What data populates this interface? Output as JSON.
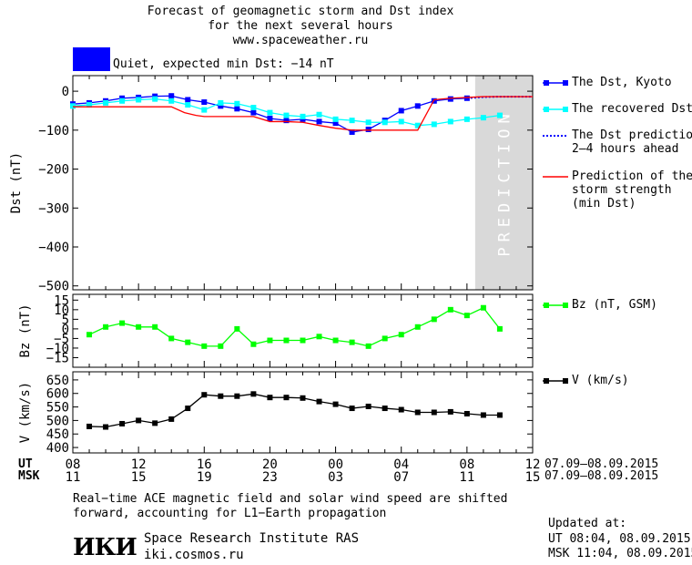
{
  "header": {
    "title_line1": "Forecast of geomagnetic storm and Dst index",
    "title_line2": "for the next several hours",
    "url": "www.spaceweather.ru",
    "status_color": "#0000ff",
    "status_text": "Quiet, expected min Dst: −14 nT"
  },
  "time_axis": {
    "ut_label": "UT",
    "msk_label": "MSK",
    "ut_ticks": [
      "08",
      "12",
      "16",
      "20",
      "00",
      "04",
      "08",
      "12"
    ],
    "msk_ticks": [
      "11",
      "15",
      "19",
      "23",
      "03",
      "07",
      "11",
      "15"
    ],
    "ut_range": "07.09–08.09.2015",
    "msk_range": "07.09–08.09.2015"
  },
  "prediction_label": "PREDICTION",
  "legends": {
    "dst_kyoto": "The Dst, Kyoto",
    "dst_recovered": "The recovered Dst",
    "dst_prediction": [
      "The Dst prediction",
      "2–4 hours ahead"
    ],
    "storm_strength": [
      "Prediction of the",
      "storm strength",
      "(min Dst)"
    ],
    "bz": "Bz (nT, GSM)",
    "v": "V (km/s)"
  },
  "footer": {
    "note_line1": "Real−time ACE magnetic field and solar wind speed are shifted",
    "note_line2": "forward, accounting for L1−Earth propagation",
    "logo_text": "ИКИ",
    "institute": "Space Research Institute RAS",
    "site": "iki.cosmos.ru",
    "updated_label": "Updated at:",
    "updated_ut": "UT   08:04, 08.09.2015",
    "updated_msk": "MSK 11:04, 08.09.2015"
  },
  "chart_data": [
    {
      "type": "line",
      "ylabel": "Dst (nT)",
      "ylim": [
        -510,
        40
      ],
      "yticks": [
        0,
        -100,
        -200,
        -300,
        -400,
        -500
      ],
      "xlim": [
        0,
        28
      ],
      "prediction_region": [
        24.5,
        28
      ],
      "series": [
        {
          "name": "The Dst, Kyoto",
          "color": "#0000ff",
          "style": "solid-square",
          "x": [
            0,
            1,
            2,
            3,
            4,
            5,
            6,
            7,
            8,
            9,
            10,
            11,
            12,
            13,
            14,
            15,
            16,
            17,
            18,
            19,
            20,
            21,
            22,
            23,
            24
          ],
          "y": [
            -33,
            -30,
            -25,
            -18,
            -16,
            -13,
            -12,
            -22,
            -28,
            -38,
            -45,
            -55,
            -70,
            -75,
            -72,
            -78,
            -82,
            -105,
            -98,
            -75,
            -50,
            -38,
            -25,
            -20,
            -18
          ]
        },
        {
          "name": "The recovered Dst",
          "color": "#00ffff",
          "style": "solid-square",
          "x": [
            0,
            1,
            2,
            3,
            4,
            5,
            6,
            7,
            8,
            9,
            10,
            11,
            12,
            13,
            14,
            15,
            16,
            17,
            18,
            19,
            20,
            21,
            22,
            23,
            24,
            25,
            26
          ],
          "y": [
            -38,
            -35,
            -30,
            -25,
            -22,
            -20,
            -25,
            -35,
            -48,
            -30,
            -32,
            -42,
            -55,
            -62,
            -65,
            -60,
            -72,
            -75,
            -80,
            -80,
            -78,
            -88,
            -85,
            -78,
            -72,
            -68,
            -62
          ]
        },
        {
          "name": "The Dst prediction 2–4 hours ahead",
          "color": "#0000ff",
          "style": "dotted",
          "x": [
            24,
            25,
            26,
            28
          ],
          "y": [
            -18,
            -15,
            -14,
            -14
          ]
        },
        {
          "name": "Prediction of the storm strength (min Dst)",
          "color": "#ff0000",
          "style": "solid",
          "x": [
            0,
            1,
            2,
            3,
            4,
            5,
            6,
            6.8,
            7.5,
            8,
            9,
            10,
            11,
            12,
            13,
            14,
            15,
            16,
            17,
            18,
            19,
            20,
            21,
            22,
            23,
            24,
            25,
            26,
            28
          ],
          "y": [
            -40,
            -40,
            -40,
            -40,
            -40,
            -40,
            -40,
            -55,
            -62,
            -65,
            -65,
            -65,
            -65,
            -78,
            -78,
            -80,
            -88,
            -95,
            -100,
            -100,
            -100,
            -100,
            -100,
            -22,
            -18,
            -16,
            -14,
            -14,
            -14
          ]
        }
      ]
    },
    {
      "type": "line",
      "ylabel": "Bz (nT)",
      "ylim": [
        -20,
        18
      ],
      "yticks": [
        15,
        10,
        5,
        0,
        -5,
        -10,
        -15
      ],
      "xlim": [
        0,
        28
      ],
      "series": [
        {
          "name": "Bz (nT, GSM)",
          "color": "#00ff00",
          "style": "solid-square",
          "x": [
            1,
            2,
            3,
            4,
            5,
            6,
            7,
            8,
            9,
            10,
            11,
            12,
            13,
            14,
            15,
            16,
            17,
            18,
            19,
            20,
            21,
            22,
            23,
            24,
            25,
            26
          ],
          "y": [
            -3,
            1,
            3,
            1,
            1,
            -5,
            -7,
            -9,
            -9,
            0,
            -8,
            -6,
            -6,
            -6,
            -4,
            -6,
            -7,
            -9,
            -5,
            -3,
            1,
            5,
            10,
            7,
            11,
            0
          ]
        }
      ]
    },
    {
      "type": "line",
      "ylabel": "V (km/s)",
      "ylim": [
        380,
        680
      ],
      "yticks": [
        650,
        600,
        550,
        500,
        450,
        400
      ],
      "xlim": [
        0,
        28
      ],
      "series": [
        {
          "name": "V (km/s)",
          "color": "#000000",
          "style": "solid-square",
          "x": [
            1,
            2,
            3,
            4,
            5,
            6,
            7,
            8,
            9,
            10,
            11,
            12,
            13,
            14,
            15,
            16,
            17,
            18,
            19,
            20,
            21,
            22,
            23,
            24,
            25,
            26
          ],
          "y": [
            478,
            476,
            488,
            500,
            490,
            505,
            545,
            595,
            590,
            590,
            598,
            585,
            585,
            583,
            570,
            560,
            545,
            552,
            545,
            540,
            530,
            530,
            532,
            525,
            520,
            520
          ]
        }
      ]
    }
  ]
}
